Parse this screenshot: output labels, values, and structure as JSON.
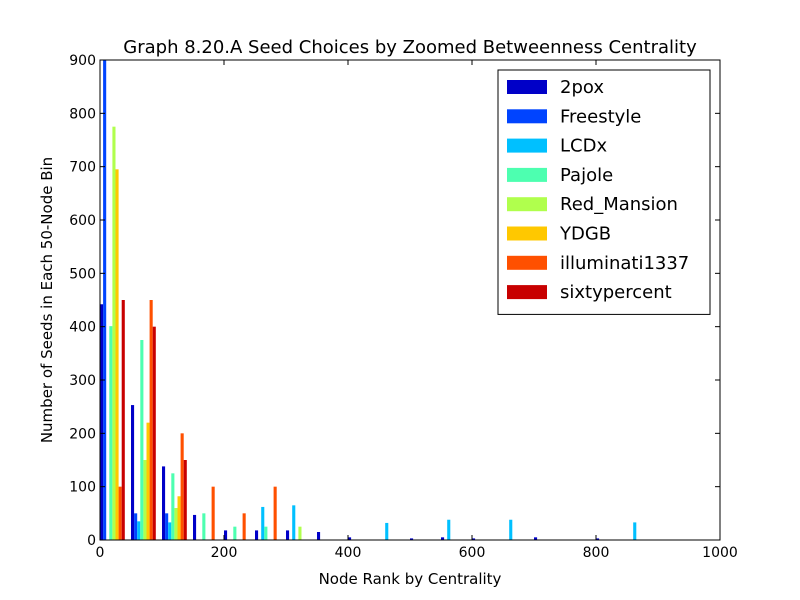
{
  "chart_data": {
    "type": "bar",
    "title": "Graph 8.20.A Seed Choices by Zoomed Betweenness Centrality",
    "xlabel": "Node Rank by Centrality",
    "ylabel": "Number of Seeds in Each 50-Node Bin",
    "xlim": [
      0,
      1000
    ],
    "ylim": [
      0,
      900
    ],
    "xticks": [
      0,
      200,
      400,
      600,
      800,
      1000
    ],
    "yticks": [
      0,
      100,
      200,
      300,
      400,
      500,
      600,
      700,
      800,
      900
    ],
    "bin_width": 50,
    "bins": [
      0,
      50,
      100,
      150,
      200,
      250,
      300,
      350,
      400,
      450,
      500,
      550,
      600,
      650,
      700,
      750,
      800,
      850,
      900,
      950
    ],
    "legend_position": "upper-right",
    "grid": false,
    "series": [
      {
        "name": "2pox",
        "color": "#0000c8",
        "values": [
          442,
          253,
          138,
          47,
          18,
          18,
          18,
          15,
          5,
          0,
          3,
          5,
          3,
          0,
          5,
          0,
          3,
          0,
          0,
          0
        ]
      },
      {
        "name": "Freestyle",
        "color": "#0044ff",
        "values": [
          900,
          50,
          50,
          0,
          0,
          0,
          0,
          0,
          0,
          0,
          0,
          0,
          0,
          0,
          0,
          0,
          0,
          0,
          0,
          0
        ]
      },
      {
        "name": "LCDx",
        "color": "#00c0ff",
        "values": [
          0,
          35,
          33,
          0,
          0,
          62,
          65,
          0,
          0,
          32,
          0,
          38,
          0,
          38,
          0,
          0,
          0,
          33,
          0,
          0
        ]
      },
      {
        "name": "Pajole",
        "color": "#4dffb0",
        "values": [
          401,
          375,
          125,
          50,
          25,
          25,
          0,
          0,
          0,
          0,
          0,
          0,
          0,
          0,
          0,
          0,
          0,
          0,
          0,
          0
        ]
      },
      {
        "name": "Red_Mansion",
        "color": "#b0ff4d",
        "values": [
          775,
          150,
          60,
          0,
          0,
          0,
          25,
          0,
          0,
          0,
          0,
          0,
          0,
          0,
          0,
          0,
          0,
          0,
          0,
          0
        ]
      },
      {
        "name": "YDGB",
        "color": "#ffc800",
        "values": [
          695,
          220,
          82,
          0,
          0,
          0,
          0,
          0,
          0,
          0,
          0,
          0,
          0,
          0,
          0,
          0,
          0,
          0,
          0,
          0
        ]
      },
      {
        "name": "illuminati1337",
        "color": "#ff5000",
        "values": [
          100,
          450,
          200,
          100,
          50,
          100,
          0,
          0,
          0,
          0,
          0,
          0,
          0,
          0,
          0,
          0,
          0,
          0,
          0,
          0
        ]
      },
      {
        "name": "sixtypercent",
        "color": "#c80000",
        "values": [
          450,
          400,
          150,
          0,
          0,
          0,
          0,
          0,
          0,
          0,
          0,
          0,
          0,
          0,
          0,
          0,
          0,
          0,
          0,
          0
        ]
      }
    ]
  }
}
